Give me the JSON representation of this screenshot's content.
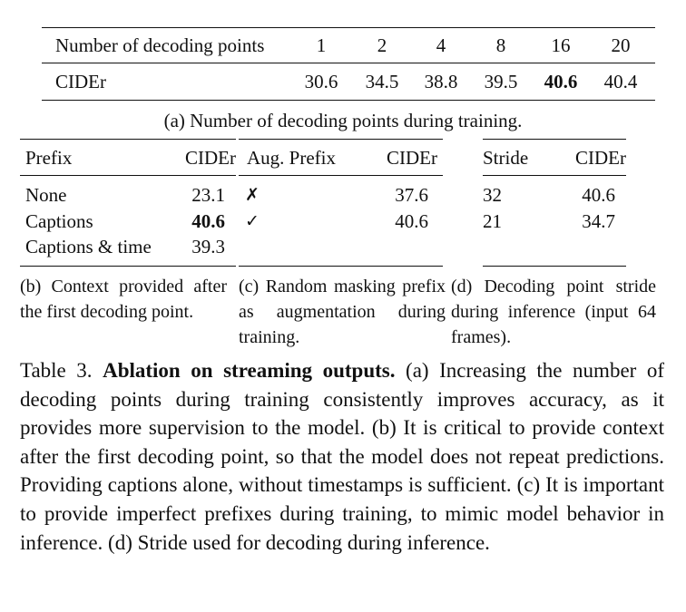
{
  "table_a": {
    "header_label": "Number of decoding points",
    "header_values": [
      "1",
      "2",
      "4",
      "8",
      "16",
      "20"
    ],
    "row_label": "CIDEr",
    "row_values": [
      "30.6",
      "34.5",
      "38.8",
      "39.5",
      "40.6",
      "40.4"
    ],
    "bold_value_index": 4,
    "caption": "(a) Number of decoding points during training."
  },
  "table_b": {
    "headers": [
      "Prefix",
      "CIDEr"
    ],
    "rows": [
      {
        "label": "None",
        "value": "23.1"
      },
      {
        "label": "Captions",
        "value": "40.6"
      },
      {
        "label": "Captions & time",
        "value": "39.3"
      }
    ],
    "bold_row_index": 1,
    "caption": "(b) Context provided after the first decoding point."
  },
  "table_c": {
    "headers": [
      "Aug. Prefix",
      "CIDEr"
    ],
    "rows": [
      {
        "label": "✗",
        "value": "37.6"
      },
      {
        "label": "✓",
        "value": "40.6"
      }
    ],
    "caption": "(c) Random masking prefix as augmentation during training."
  },
  "table_d": {
    "headers": [
      "Stride",
      "CIDEr"
    ],
    "rows": [
      {
        "label": "32",
        "value": "40.6"
      },
      {
        "label": "21",
        "value": "34.7"
      }
    ],
    "caption": "(d) Decoding point stride during inference (input 64 frames)."
  },
  "main_caption": {
    "label": "Table 3.",
    "title": "Ablation on streaming outputs.",
    "body": "(a) Increasing the number of decoding points during training consistently improves accuracy, as it provides more supervision to the model. (b) It is critical to provide context after the first decoding point, so that the model does not repeat predictions. Providing captions alone, without timestamps is sufficient. (c) It is important to provide imperfect prefixes during training, to mimic model behavior in inference. (d) Stride used for decoding during inference."
  }
}
